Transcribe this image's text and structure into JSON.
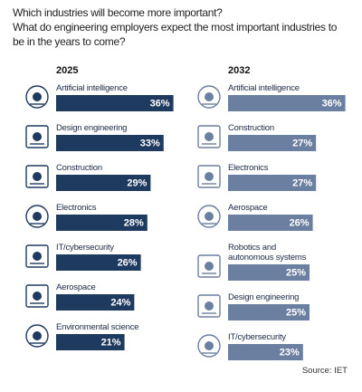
{
  "title": "Which industries will become more important?",
  "subtitle": "What do engineering employers expect the most important industries to be in the years to come?",
  "source": "Source: IET",
  "chart_data": [
    {
      "type": "bar",
      "title": "2025",
      "color": "#1f3a5f",
      "categories": [
        "Artificial intelligence",
        "Design engineering",
        "Construction",
        "Electronics",
        "IT/cybersecurity",
        "Aerospace",
        "Environmental science"
      ],
      "values": [
        36,
        33,
        29,
        28,
        26,
        24,
        21
      ],
      "value_labels": [
        "36%",
        "33%",
        "29%",
        "28%",
        "26%",
        "24%",
        "21%"
      ]
    },
    {
      "type": "bar",
      "title": "2032",
      "color": "#6b7fa0",
      "categories": [
        "Artificial intelligence",
        "Construction",
        "Electronics",
        "Aerospace",
        "Robotics and autonomous systems",
        "Design engineering",
        "IT/cybersecurity"
      ],
      "values": [
        36,
        27,
        27,
        26,
        25,
        25,
        23
      ],
      "value_labels": [
        "36%",
        "27%",
        "27%",
        "26%",
        "25%",
        "25%",
        "23%"
      ]
    }
  ]
}
